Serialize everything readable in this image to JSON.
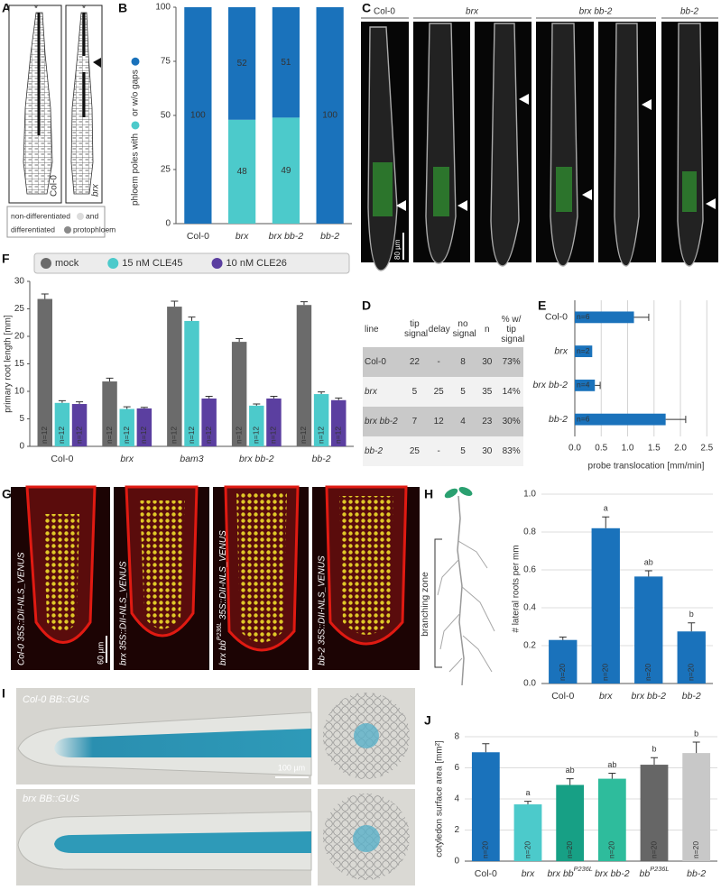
{
  "panel_letters": [
    "A",
    "B",
    "C",
    "D",
    "E",
    "F",
    "G",
    "H",
    "I",
    "J"
  ],
  "panel_a": {
    "marks": [
      "*",
      "*"
    ],
    "labels": [
      "Col-0",
      "brx"
    ],
    "legend": [
      "non-differentiated",
      "and",
      "differentiated",
      "protophloem"
    ]
  },
  "panel_c": {
    "labels": [
      "Col-0",
      "brx",
      "brx bb-2",
      "bb-2"
    ],
    "scale_bar": "80 µm"
  },
  "table_d": {
    "header": [
      "line",
      "tip signal",
      "delay",
      "no signal",
      "n",
      "% w/ tip signal"
    ],
    "rows": [
      [
        "Col-0",
        22,
        "-",
        8,
        30,
        "73%"
      ],
      [
        "brx",
        5,
        25,
        5,
        35,
        "14%"
      ],
      [
        "brx bb-2",
        7,
        12,
        4,
        23,
        "30%"
      ],
      [
        "bb-2",
        25,
        "-",
        5,
        30,
        "83%"
      ]
    ]
  },
  "panel_g": {
    "labels": [
      "Col-0 35S::DII-NLS_VENUS",
      "brx 35S::DII-NLS_VENUS",
      "brx bbP236L 35S::DII-NLS_VENUS",
      "bb-2 35S::DII-NLS_VENUS"
    ],
    "scale_bar": "60 µm"
  },
  "panel_i": {
    "labels": [
      "Col-0 BB::GUS",
      "brx BB::GUS"
    ],
    "scale_bar": "100 µm"
  },
  "chart_data": [
    {
      "type": "bar",
      "stacked": true,
      "categories": [
        "Col-0",
        "brx",
        "brx bb-2",
        "bb-2"
      ],
      "series": [
        {
          "color": "#4ccacb",
          "values": [
            0,
            48,
            49,
            0
          ]
        },
        {
          "color": "#1a72bb",
          "values": [
            100,
            52,
            51,
            100
          ]
        }
      ],
      "ylabel": [
        "phloem poles with",
        "or w/o gaps"
      ],
      "ylim": [
        0,
        100
      ],
      "yticks": [
        0,
        25,
        50,
        75,
        100
      ],
      "grid": false
    },
    {
      "type": "bar",
      "orientation": "horizontal",
      "categories": [
        "Col-0",
        "brx",
        "brx bb-2",
        "bb-2"
      ],
      "values": [
        1.12,
        0.33,
        0.38,
        1.72
      ],
      "errors": [
        0.28,
        null,
        0.1,
        0.38
      ],
      "n_labels": [
        "n=6",
        "n=2",
        "n=4",
        "n=6"
      ],
      "color": "#1a72bb",
      "xlabel": "probe translocation [mm/min]",
      "xlim": [
        0,
        2.7
      ],
      "xticks": [
        {
          "value": 0,
          "label": "0.0"
        },
        0.5,
        {
          "value": 1,
          "label": "1.0"
        },
        1.5,
        {
          "value": 2,
          "label": "2.0"
        },
        2.5
      ],
      "grid": true
    },
    {
      "type": "bar",
      "categories": [
        "Col-0",
        "brx",
        "bam3",
        "brx bb-2",
        "bb-2"
      ],
      "series": [
        {
          "name": "mock",
          "color": "#6b6b6b",
          "values": [
            26.8,
            11.8,
            25.4,
            19.0,
            25.7
          ],
          "errors": [
            0.9,
            0.6,
            1.0,
            0.6,
            0.6
          ],
          "n_labels": [
            "n=12",
            "n=12",
            "n=12",
            "n=12",
            "n=12"
          ]
        },
        {
          "name": "15 nM CLE45",
          "color": "#4ccacb",
          "values": [
            7.9,
            6.8,
            22.8,
            7.4,
            9.5
          ],
          "errors": [
            0.4,
            0.4,
            0.7,
            0.3,
            0.4
          ],
          "n_labels": [
            "n=12",
            "n=12",
            "n=12",
            "n=12",
            "n=12"
          ]
        },
        {
          "name": "10 nM CLE26",
          "color": "#5b3fa0",
          "values": [
            7.7,
            6.9,
            8.7,
            8.7,
            8.4
          ],
          "errors": [
            0.4,
            0.2,
            0.4,
            0.4,
            0.4
          ],
          "n_labels": [
            "n=12",
            "n=12",
            "n=12",
            "n=12",
            "n=12"
          ]
        }
      ],
      "ylabel": "primary root length [mm]",
      "ylim": [
        0,
        30
      ],
      "yticks": [
        0,
        5,
        10,
        15,
        20,
        25,
        30
      ],
      "grid": false,
      "legend": "top"
    },
    {
      "type": "bar",
      "categories": [
        "Col-0",
        "brx",
        "brx bb-2",
        "bb-2"
      ],
      "values": [
        0.23,
        0.82,
        0.565,
        0.275
      ],
      "errors": [
        0.015,
        0.06,
        0.03,
        0.045
      ],
      "letters": [
        null,
        "a",
        "ab",
        "b"
      ],
      "n_labels": [
        "n=20",
        "n=20",
        "n=20",
        "n=20"
      ],
      "color": "#1a72bb",
      "ylabel": "# lateral roots per mm",
      "annotation": "branching zone",
      "ylim": [
        0,
        1
      ],
      "yticks": [
        {
          "value": 0,
          "label": "0.0"
        },
        0.2,
        0.4,
        0.6,
        0.8,
        {
          "value": 1,
          "label": "1.0"
        }
      ],
      "grid": true
    },
    {
      "type": "bar",
      "categories": [
        "Col-0",
        "brx",
        "brx bbP236L",
        "brx bb-2",
        "bbP236L",
        "bb-2"
      ],
      "values": [
        7.0,
        3.65,
        4.9,
        5.3,
        6.2,
        6.95
      ],
      "errors": [
        0.55,
        0.2,
        0.4,
        0.35,
        0.45,
        0.7
      ],
      "letters": [
        null,
        "a",
        "ab",
        "ab",
        "b",
        "b"
      ],
      "n_labels": [
        "n=20",
        "n=20",
        "n=20",
        "n=20",
        "n=20",
        "n=20"
      ],
      "colors": [
        "#1a72bb",
        "#4ccacb",
        "#17a085",
        "#2ebc9c",
        "#666666",
        "#c8c8c8"
      ],
      "ylabel": "cotyledon surface area [mm²]",
      "ylim": [
        0,
        8
      ],
      "yticks": [
        0,
        2,
        4,
        6,
        8
      ],
      "grid": true
    }
  ]
}
